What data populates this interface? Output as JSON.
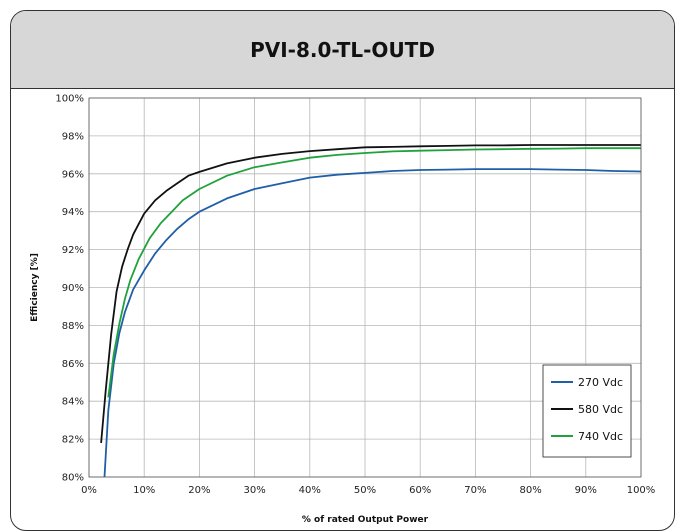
{
  "chart_data": {
    "type": "line",
    "title": "PVI-8.0-TL-OUTD",
    "xlabel": "% of rated Output Power",
    "ylabel": "Efficiency [%]",
    "xlim": [
      0,
      100
    ],
    "ylim": [
      80,
      100
    ],
    "x_ticks": [
      "0%",
      "10%",
      "20%",
      "30%",
      "40%",
      "50%",
      "60%",
      "70%",
      "80%",
      "90%",
      "100%"
    ],
    "y_ticks": [
      "80%",
      "82%",
      "84%",
      "86%",
      "88%",
      "90%",
      "92%",
      "94%",
      "96%",
      "98%",
      "100%"
    ],
    "grid": true,
    "legend_position": "bottom-right",
    "series": [
      {
        "name": "270 Vdc",
        "color": "#1f5fa8",
        "x": [
          2.8,
          3.5,
          4.5,
          5.5,
          6.5,
          8,
          10,
          12,
          14,
          16,
          18,
          20,
          25,
          30,
          35,
          40,
          45,
          50,
          55,
          60,
          65,
          70,
          75,
          80,
          85,
          90,
          95,
          100
        ],
        "y": [
          80.0,
          83.5,
          86.0,
          87.6,
          88.7,
          89.9,
          90.9,
          91.8,
          92.5,
          93.1,
          93.6,
          94.0,
          94.7,
          95.2,
          95.5,
          95.8,
          95.95,
          96.05,
          96.15,
          96.2,
          96.22,
          96.25,
          96.25,
          96.25,
          96.22,
          96.2,
          96.15,
          96.12
        ]
      },
      {
        "name": "580 Vdc",
        "color": "#111111",
        "x": [
          2.2,
          3.0,
          4.0,
          5.0,
          6.0,
          7.0,
          8.0,
          10,
          12,
          14,
          16,
          18,
          20,
          25,
          30,
          35,
          40,
          45,
          50,
          55,
          60,
          65,
          70,
          75,
          80,
          85,
          90,
          95,
          100
        ],
        "y": [
          81.8,
          84.5,
          87.5,
          89.8,
          91.1,
          92.0,
          92.8,
          93.9,
          94.6,
          95.1,
          95.5,
          95.9,
          96.1,
          96.55,
          96.85,
          97.05,
          97.2,
          97.3,
          97.4,
          97.42,
          97.45,
          97.47,
          97.5,
          97.5,
          97.52,
          97.52,
          97.52,
          97.52,
          97.52
        ]
      },
      {
        "name": "740 Vdc",
        "color": "#1fa23c",
        "x": [
          3.5,
          4.5,
          5.5,
          6.5,
          7.5,
          9,
          11,
          13,
          15,
          17,
          20,
          25,
          30,
          35,
          40,
          45,
          50,
          55,
          60,
          65,
          70,
          75,
          80,
          85,
          90,
          95,
          100
        ],
        "y": [
          84.2,
          86.5,
          88.1,
          89.4,
          90.4,
          91.5,
          92.6,
          93.4,
          94.0,
          94.6,
          95.2,
          95.9,
          96.35,
          96.6,
          96.85,
          97.0,
          97.1,
          97.18,
          97.22,
          97.25,
          97.28,
          97.3,
          97.32,
          97.33,
          97.35,
          97.35,
          97.35
        ]
      }
    ]
  }
}
